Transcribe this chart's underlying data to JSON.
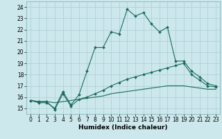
{
  "xlabel": "Humidex (Indice chaleur)",
  "bg_color": "#cce8ec",
  "grid_color": "#aacdd4",
  "line_color": "#1a6b5a",
  "xlim": [
    -0.5,
    23.5
  ],
  "ylim": [
    14.5,
    24.5
  ],
  "xticks": [
    0,
    1,
    2,
    3,
    4,
    5,
    6,
    7,
    8,
    9,
    10,
    11,
    12,
    13,
    14,
    15,
    16,
    17,
    18,
    19,
    20,
    21,
    22,
    23
  ],
  "yticks": [
    15,
    16,
    17,
    18,
    19,
    20,
    21,
    22,
    23,
    24
  ],
  "series1_x": [
    0,
    1,
    2,
    3,
    4,
    5,
    6,
    7,
    8,
    9,
    10,
    11,
    12,
    13,
    14,
    15,
    16,
    17,
    18,
    19,
    20,
    21,
    22,
    23
  ],
  "series1_y": [
    15.7,
    15.5,
    15.5,
    15.0,
    16.5,
    15.3,
    16.2,
    18.3,
    20.4,
    20.4,
    21.8,
    21.6,
    23.8,
    23.2,
    23.5,
    22.5,
    21.8,
    22.2,
    19.2,
    19.2,
    18.3,
    17.8,
    17.2,
    17.0
  ],
  "series2_x": [
    0,
    1,
    2,
    3,
    4,
    5,
    6,
    7,
    8,
    9,
    10,
    11,
    12,
    13,
    14,
    15,
    16,
    17,
    18,
    19,
    20,
    21,
    22,
    23
  ],
  "series2_y": [
    15.7,
    15.6,
    15.6,
    14.9,
    16.3,
    15.2,
    15.8,
    16.0,
    16.3,
    16.6,
    17.0,
    17.3,
    17.6,
    17.8,
    18.0,
    18.2,
    18.4,
    18.6,
    18.8,
    19.0,
    18.0,
    17.5,
    17.0,
    16.9
  ],
  "series3_x": [
    0,
    1,
    2,
    3,
    4,
    5,
    6,
    7,
    8,
    9,
    10,
    11,
    12,
    13,
    14,
    15,
    16,
    17,
    18,
    19,
    20,
    21,
    22,
    23
  ],
  "series3_y": [
    15.7,
    15.6,
    15.6,
    15.5,
    15.6,
    15.7,
    15.8,
    15.9,
    16.0,
    16.1,
    16.3,
    16.4,
    16.5,
    16.6,
    16.7,
    16.8,
    16.9,
    17.0,
    17.0,
    17.0,
    16.9,
    16.8,
    16.7,
    16.7
  ]
}
